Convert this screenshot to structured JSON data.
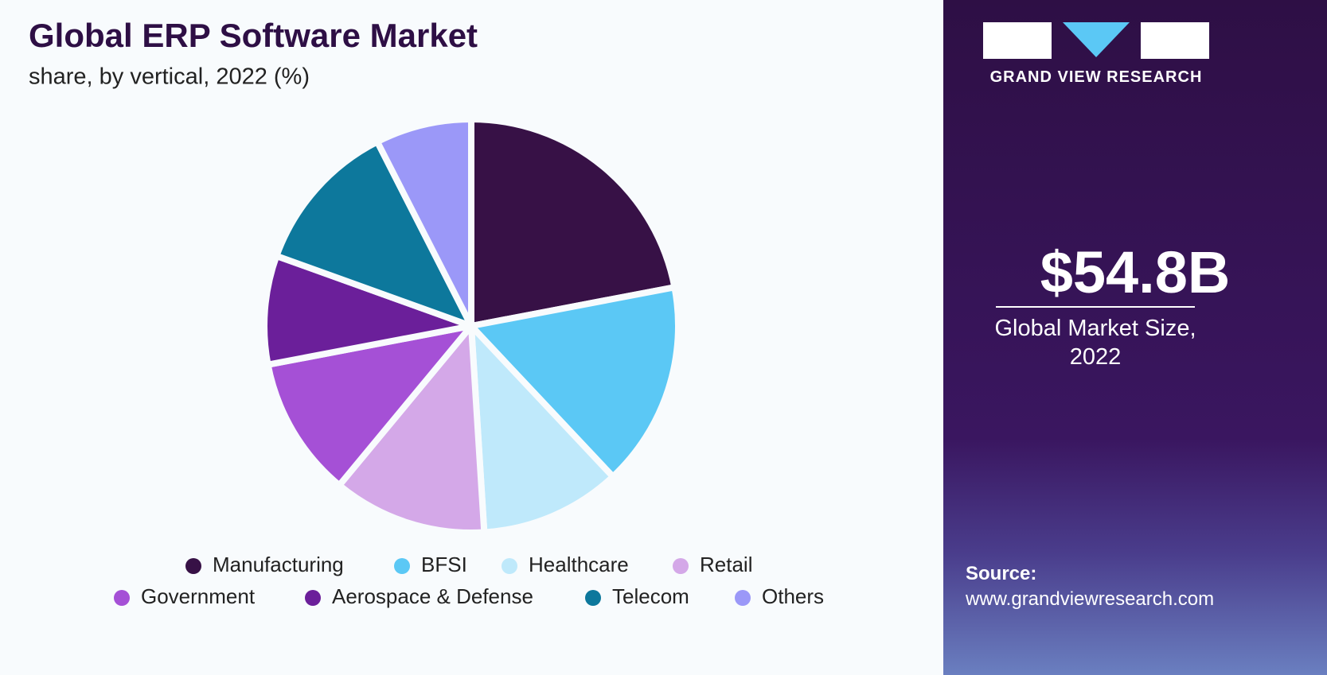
{
  "chart_data": {
    "type": "pie",
    "title": "Global ERP Software Market",
    "subtitle": "share, by vertical, 2022 (%)",
    "categories": [
      "Manufacturing",
      "BFSI",
      "Healthcare",
      "Retail",
      "Government",
      "Aerospace & Defense",
      "Telecom",
      "Others"
    ],
    "values": [
      22,
      16,
      11,
      12,
      11,
      8.5,
      12,
      7.5
    ],
    "colors": [
      "#371146",
      "#5bc8f5",
      "#bfe9fb",
      "#d4a8e8",
      "#a550d6",
      "#6b1f9a",
      "#0d789c",
      "#9b98f8"
    ],
    "legend": "bottom"
  },
  "brand": "GRAND VIEW RESEARCH",
  "market_size": "$54.8B",
  "market_size_label": "Global Market Size, 2022",
  "source_label": "Source:",
  "source_url": "www.grandviewresearch.com"
}
